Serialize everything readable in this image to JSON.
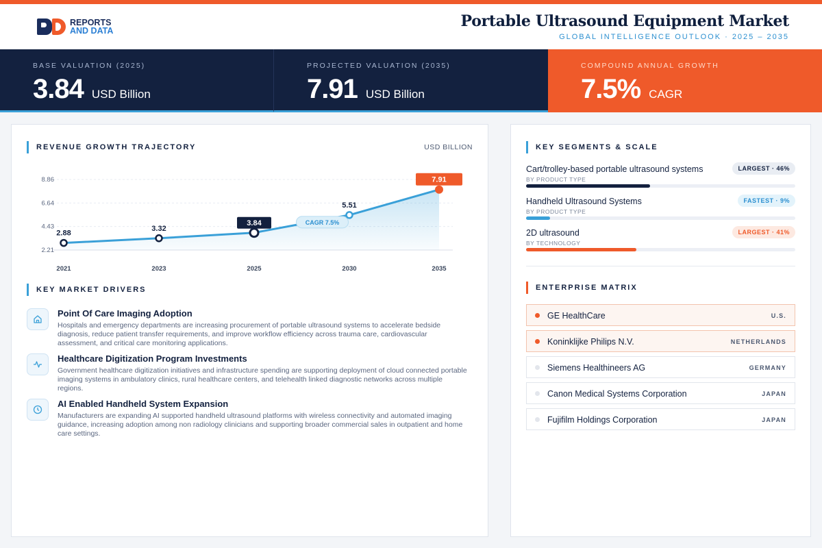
{
  "brand": {
    "line1": "REPORTS",
    "line2": "AND DATA"
  },
  "header": {
    "title": "Portable Ultrasound Equipment Market",
    "subtitle": "GLOBAL INTELLIGENCE OUTLOOK  ·  2025 – 2035"
  },
  "kpis": [
    {
      "label": "BASE VALUATION (2025)",
      "value": "3.84",
      "unit": "USD Billion"
    },
    {
      "label": "PROJECTED VALUATION (2035)",
      "value": "7.91",
      "unit": "USD Billion"
    },
    {
      "label": "COMPOUND ANNUAL GROWTH",
      "value": "7.5%",
      "unit": "CAGR"
    }
  ],
  "chart_section": {
    "title": "REVENUE GROWTH TRAJECTORY",
    "unit": "USD BILLION"
  },
  "chart_data": {
    "type": "area",
    "title": "REVENUE GROWTH TRAJECTORY",
    "ylabel": "USD BILLION",
    "x": [
      "2021",
      "2023",
      "2025",
      "2030",
      "2035"
    ],
    "values": [
      2.88,
      3.32,
      3.84,
      5.51,
      7.91
    ],
    "data_labels": [
      "2.88",
      "3.32",
      "3.84",
      "5.51",
      "7.91"
    ],
    "y_ticks": [
      "2.21",
      "4.43",
      "6.64",
      "8.86"
    ],
    "ylim": [
      2.21,
      8.86
    ],
    "annotation": "CAGR 7.5%",
    "highlight": {
      "base_index": 2,
      "end_index": 4
    },
    "grid": true,
    "colors": {
      "line": "#3aa0d8",
      "base": "#13213f",
      "end": "#ef5a2a"
    }
  },
  "drivers_section": {
    "title": "KEY MARKET DRIVERS"
  },
  "drivers": [
    {
      "icon": "home-icon",
      "title": "Point Of Care Imaging Adoption",
      "description": "Hospitals and emergency departments are increasing procurement of portable ultrasound systems to accelerate bedside diagnosis, reduce patient transfer requirements, and improve workflow efficiency across trauma care, cardiovascular assessment, and critical care monitoring applications."
    },
    {
      "icon": "activity-icon",
      "title": "Healthcare Digitization Program Investments",
      "description": "Government healthcare digitization initiatives and infrastructure spending are supporting deployment of cloud connected portable imaging systems in ambulatory clinics, rural healthcare centers, and telehealth linked diagnostic networks across multiple regions."
    },
    {
      "icon": "clock-icon",
      "title": "AI Enabled Handheld System Expansion",
      "description": "Manufacturers are expanding AI supported handheld ultrasound platforms with wireless connectivity and automated imaging guidance, increasing adoption among non radiology clinicians and supporting broader commercial sales in outpatient and home care settings."
    }
  ],
  "segments_section": {
    "title": "KEY SEGMENTS & SCALE"
  },
  "segments": [
    {
      "name": "Cart/trolley-based portable ultrasound systems",
      "category": "BY PRODUCT TYPE",
      "badge": "LARGEST · 46%",
      "share": 0.46,
      "color": "#13213f"
    },
    {
      "name": "Handheld Ultrasound Systems",
      "category": "BY PRODUCT TYPE",
      "badge": "FASTEST · 9%",
      "share": 0.09,
      "color": "#3aa0d8"
    },
    {
      "name": "2D ultrasound",
      "category": "BY TECHNOLOGY",
      "badge": "LARGEST · 41%",
      "share": 0.41,
      "color": "#ef5a2a"
    }
  ],
  "enterprise_section": {
    "title": "ENTERPRISE MATRIX"
  },
  "enterprises": [
    {
      "name": "GE HealthCare",
      "country": "U.S.",
      "highlight": true
    },
    {
      "name": "Koninklijke Philips N.V.",
      "country": "NETHERLANDS",
      "highlight": true
    },
    {
      "name": "Siemens Healthineers AG",
      "country": "GERMANY",
      "highlight": false
    },
    {
      "name": "Canon Medical Systems Corporation",
      "country": "JAPAN",
      "highlight": false
    },
    {
      "name": "Fujifilm Holdings Corporation",
      "country": "JAPAN",
      "highlight": false
    }
  ]
}
